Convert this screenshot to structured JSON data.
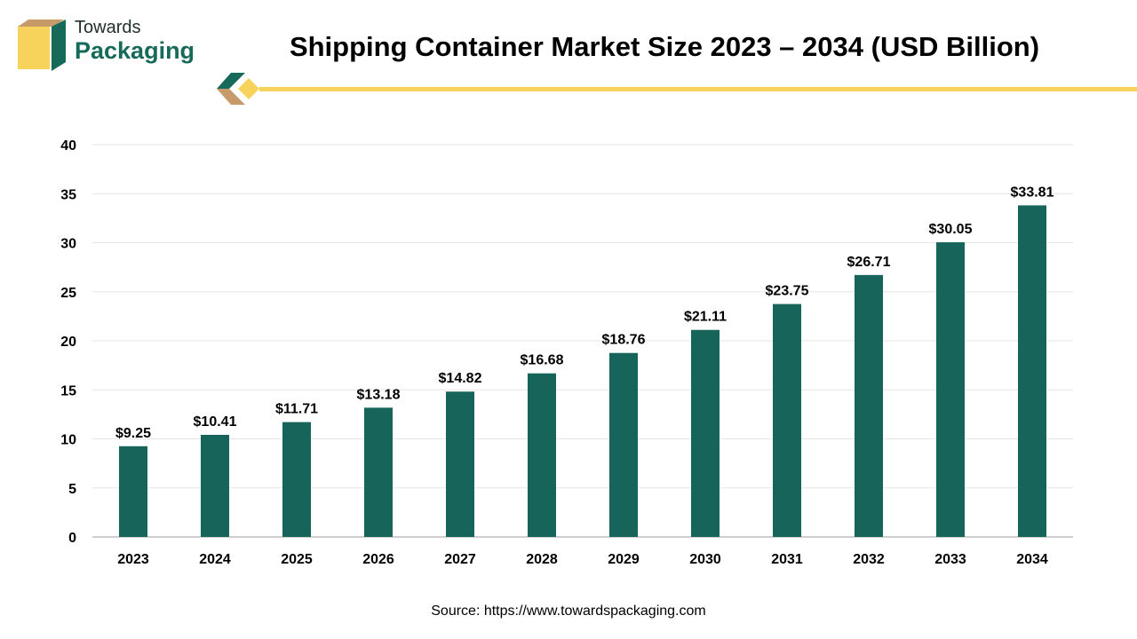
{
  "brand": {
    "name_top": "Towards",
    "name_bottom": "Packaging",
    "logo_icon": "box-logo-icon",
    "accent_color": "#17695a",
    "secondary_color": "#f7d35c",
    "tertiary_color": "#c79a6a"
  },
  "chart_data": {
    "type": "bar",
    "title": "Shipping Container Market Size 2023 – 2034 (USD Billion)",
    "xlabel": "",
    "ylabel": "",
    "categories": [
      "2023",
      "2024",
      "2025",
      "2026",
      "2027",
      "2028",
      "2029",
      "2030",
      "2031",
      "2032",
      "2033",
      "2034"
    ],
    "values": [
      9.25,
      10.41,
      11.71,
      13.18,
      14.82,
      16.68,
      18.76,
      21.11,
      23.75,
      26.71,
      30.05,
      33.81
    ],
    "data_labels": [
      "$9.25",
      "$10.41",
      "$11.71",
      "$13.18",
      "$14.82",
      "$16.68",
      "$18.76",
      "$21.11",
      "$23.75",
      "$26.71",
      "$30.05",
      "$33.81"
    ],
    "yticks": [
      0,
      5,
      10,
      15,
      20,
      25,
      30,
      35,
      40
    ],
    "ylim": [
      0,
      40
    ],
    "grid": true,
    "bar_color": "#17645a",
    "legend": "none"
  },
  "source": "Source: https://www.towardspackaging.com"
}
